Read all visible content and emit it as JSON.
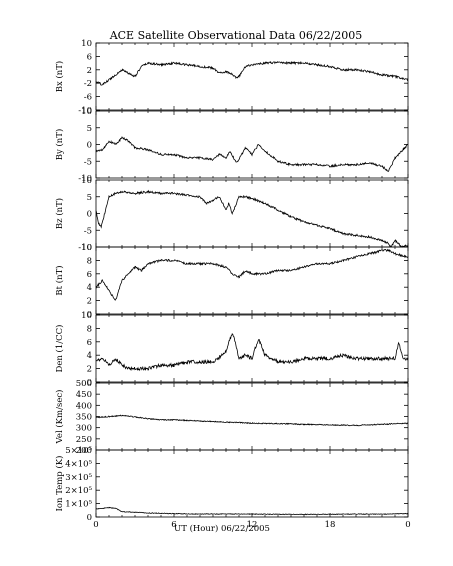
{
  "chart_data": {
    "type": "line",
    "title": "ACE Satellite Observational Data   06/22/2005",
    "xlabel": "UT (Hour)   06/22/2005",
    "x_ticks": [
      "0",
      "6",
      "12",
      "18",
      "0"
    ],
    "xlim": [
      0,
      24
    ],
    "panels": [
      {
        "name": "bx",
        "ylabel": "Bx (nT)",
        "ylim": [
          -10,
          10
        ],
        "y_ticks": [
          "10",
          "6",
          "2",
          "-2",
          "-6",
          "-10"
        ],
        "y_tick_values": [
          10,
          6,
          2,
          -2,
          -6,
          -10
        ],
        "x": [
          0,
          0.5,
          1,
          1.5,
          2,
          2.5,
          3,
          3.5,
          4,
          5,
          6,
          7,
          8,
          9,
          9.5,
          10,
          10.5,
          10.8,
          11,
          11.5,
          12,
          13,
          14,
          15,
          16,
          17,
          18,
          19,
          20,
          21,
          22,
          23,
          23.5,
          24
        ],
        "values": [
          -1.5,
          -2.5,
          -1,
          0.5,
          2,
          1,
          0,
          3,
          4,
          3.5,
          4,
          3.5,
          3,
          2.5,
          1,
          1.5,
          0.5,
          -0.5,
          0,
          3,
          3.5,
          4,
          4.2,
          4,
          4,
          3.5,
          3,
          2,
          2,
          1.5,
          0.5,
          0,
          -0.5,
          -1
        ]
      },
      {
        "name": "by",
        "ylabel": "By (nT)",
        "ylim": [
          -10,
          10
        ],
        "y_ticks": [
          "10",
          "5",
          "0",
          "-5",
          "-10"
        ],
        "y_tick_values": [
          10,
          5,
          0,
          -5,
          -10
        ],
        "x": [
          0,
          0.5,
          1,
          1.5,
          2,
          2.5,
          3,
          4,
          5,
          6,
          7,
          8,
          9,
          9.5,
          10,
          10.3,
          10.8,
          11,
          11.5,
          12,
          12.5,
          13,
          14,
          15,
          16,
          17,
          18,
          19,
          20,
          21,
          22,
          22.5,
          23,
          23.5,
          24
        ],
        "values": [
          -2,
          -1.5,
          1,
          0,
          2,
          1,
          -1,
          -1.5,
          -3,
          -3,
          -4,
          -4,
          -4.5,
          -3,
          -4,
          -2,
          -5.5,
          -4.5,
          -1,
          -3,
          0,
          -2,
          -5,
          -6,
          -6,
          -6,
          -6.5,
          -6,
          -6,
          -5.5,
          -6.5,
          -8,
          -4,
          -2,
          0
        ]
      },
      {
        "name": "bz",
        "ylabel": "Bz (nT)",
        "ylim": [
          -10,
          10
        ],
        "y_ticks": [
          "10",
          "5",
          "0",
          "-5",
          "-10"
        ],
        "y_tick_values": [
          10,
          5,
          0,
          -5,
          -10
        ],
        "x": [
          0,
          0.2,
          0.4,
          0.6,
          1,
          1.5,
          2,
          3,
          4,
          5,
          6,
          7,
          8,
          8.5,
          9,
          9.5,
          10,
          10.2,
          10.5,
          11,
          11.5,
          12,
          13,
          14,
          15,
          16,
          17,
          18,
          19,
          20,
          21,
          22,
          22.5,
          22.7,
          23,
          23.5,
          24
        ],
        "values": [
          1,
          -3,
          -4,
          -1,
          5,
          6,
          6.5,
          6,
          6.5,
          6,
          6,
          5.5,
          5,
          3,
          4,
          5,
          1,
          3,
          0,
          5,
          5,
          4.5,
          3,
          1,
          -1,
          -2.5,
          -3.5,
          -4.5,
          -6,
          -6.5,
          -7,
          -8,
          -9,
          -10,
          -8,
          -10,
          -9.5
        ]
      },
      {
        "name": "bt",
        "ylabel": "Bt (nT)",
        "ylim": [
          0,
          10
        ],
        "y_ticks": [
          "10",
          "8",
          "6",
          "4",
          "2",
          "0"
        ],
        "y_tick_values": [
          10,
          8,
          6,
          4,
          2,
          0
        ],
        "x": [
          0,
          0.5,
          1,
          1.5,
          2,
          2.5,
          3,
          3.5,
          4,
          5,
          6,
          7,
          8,
          9,
          10,
          10.5,
          11,
          11.5,
          12,
          13,
          14,
          15,
          16,
          17,
          18,
          19,
          20,
          21,
          21.5,
          22,
          22.5,
          23,
          24
        ],
        "values": [
          4,
          5,
          3.5,
          2,
          5,
          6,
          7,
          6.5,
          7.5,
          8,
          8,
          7.5,
          7.5,
          7.5,
          7,
          6,
          5.5,
          6.5,
          6,
          6,
          6.5,
          6.5,
          7,
          7.5,
          7.5,
          8,
          8.5,
          9,
          9.2,
          9.5,
          9.5,
          9,
          8.5
        ]
      },
      {
        "name": "den",
        "ylabel": "Den (1/CC)",
        "ylim": [
          0,
          10
        ],
        "y_ticks": [
          "10",
          "8",
          "6",
          "4",
          "2",
          "0"
        ],
        "y_tick_values": [
          10,
          8,
          6,
          4,
          2,
          0
        ],
        "x": [
          0,
          0.5,
          1,
          1.5,
          2,
          2.5,
          3,
          4,
          5,
          6,
          7,
          8,
          9,
          10,
          10.5,
          11,
          11.5,
          12,
          12.5,
          13,
          14,
          15,
          16,
          17,
          18,
          19,
          20,
          21,
          22,
          23,
          23.3,
          23.6,
          24
        ],
        "values": [
          3,
          3.5,
          2.5,
          3.5,
          2.5,
          2,
          2,
          2,
          2.5,
          2.5,
          3,
          3,
          3,
          4.5,
          7.5,
          3.5,
          4,
          3.5,
          6.5,
          4,
          3,
          3,
          3.5,
          3.5,
          3.5,
          4,
          3.5,
          3.5,
          3.5,
          3.5,
          6,
          3.5,
          3.5
        ]
      },
      {
        "name": "vel",
        "ylabel": "Vel (Km/sec)",
        "ylim": [
          200,
          500
        ],
        "y_ticks": [
          "500",
          "450",
          "400",
          "350",
          "300",
          "250",
          "200"
        ],
        "y_tick_values": [
          500,
          450,
          400,
          350,
          300,
          250,
          200
        ],
        "x": [
          0,
          1,
          2,
          3,
          4,
          5,
          6,
          8,
          10,
          12,
          14,
          16,
          18,
          20,
          22,
          24
        ],
        "values": [
          345,
          350,
          355,
          348,
          340,
          335,
          335,
          330,
          325,
          320,
          318,
          315,
          312,
          310,
          315,
          320
        ]
      },
      {
        "name": "temp",
        "ylabel": "Ion Temp (K)",
        "ylim": [
          0,
          500000
        ],
        "y_ticks": [
          "5×10⁵",
          "4×10⁵",
          "3×10⁵",
          "2×10⁵",
          "1×10⁵",
          "0"
        ],
        "y_tick_values": [
          500000,
          400000,
          300000,
          200000,
          100000,
          0
        ],
        "x": [
          0,
          0.5,
          1,
          1.5,
          2,
          3,
          4,
          6,
          8,
          10,
          12,
          14,
          16,
          18,
          20,
          22,
          24
        ],
        "values": [
          60000,
          65000,
          70000,
          65000,
          40000,
          35000,
          30000,
          25000,
          22000,
          22000,
          22000,
          20000,
          20000,
          20000,
          22000,
          22000,
          25000
        ]
      }
    ]
  }
}
